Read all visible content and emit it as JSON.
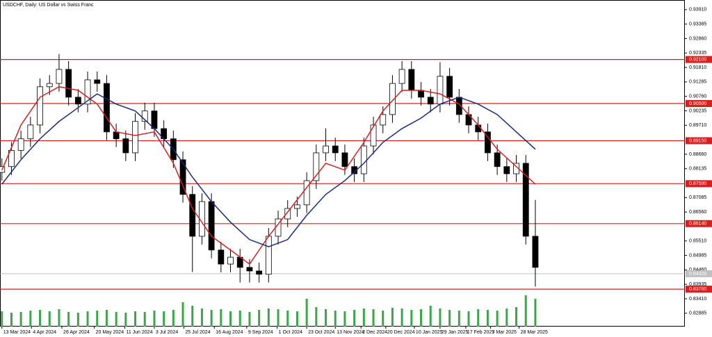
{
  "chart_data": {
    "type": "candlestick",
    "title": "USDCHF, Daily:  US Dollar vs Swiss Franc",
    "x": [
      0,
      1,
      2,
      3,
      4,
      5,
      6,
      7,
      8,
      9,
      10,
      11,
      12,
      13,
      14,
      15,
      16,
      17,
      18,
      19,
      20,
      21,
      22,
      23,
      24,
      25,
      26,
      27,
      28,
      29,
      30,
      31,
      32,
      33,
      34,
      35,
      36,
      37,
      38,
      39,
      40,
      41,
      42,
      43,
      44,
      45,
      46,
      47,
      48,
      49,
      50,
      51,
      52,
      53,
      54,
      55,
      56
    ],
    "open": [
      0.88,
      0.8821,
      0.888,
      0.8922,
      0.8972,
      0.9111,
      0.9123,
      0.9174,
      0.9073,
      0.9048,
      0.9136,
      0.9123,
      0.8947,
      0.8922,
      0.8871,
      0.8985,
      0.9023,
      0.8959,
      0.8922,
      0.8846,
      0.872,
      0.8568,
      0.8694,
      0.8518,
      0.8467,
      0.8492,
      0.8455,
      0.8442,
      0.843,
      0.8568,
      0.8631,
      0.8669,
      0.8682,
      0.877,
      0.8871,
      0.8896,
      0.8871,
      0.8821,
      0.8795,
      0.8896,
      0.8972,
      0.901,
      0.9123,
      0.9174,
      0.9098,
      0.9073,
      0.9048,
      0.9149,
      0.9073,
      0.901,
      0.8972,
      0.8947,
      0.8871,
      0.8821,
      0.8795,
      0.8833,
      0.8568
    ],
    "high": [
      0.8851,
      0.891,
      0.8952,
      0.9002,
      0.9141,
      0.9153,
      0.923,
      0.9204,
      0.9103,
      0.9166,
      0.9166,
      0.9153,
      0.8977,
      0.8952,
      0.9015,
      0.9053,
      0.9053,
      0.8989,
      0.8952,
      0.8876,
      0.875,
      0.8724,
      0.8724,
      0.8548,
      0.8522,
      0.8522,
      0.8485,
      0.8472,
      0.8598,
      0.8661,
      0.8699,
      0.8712,
      0.88,
      0.8901,
      0.896,
      0.8926,
      0.8901,
      0.8851,
      0.8926,
      0.9002,
      0.904,
      0.9153,
      0.9204,
      0.9204,
      0.9128,
      0.9103,
      0.92,
      0.9179,
      0.9103,
      0.904,
      0.9002,
      0.8977,
      0.8901,
      0.8851,
      0.8863,
      0.8863,
      0.87
    ],
    "low": [
      0.877,
      0.8791,
      0.885,
      0.8892,
      0.8942,
      0.9081,
      0.9093,
      0.9043,
      0.9018,
      0.9018,
      0.9093,
      0.8917,
      0.8892,
      0.8841,
      0.8841,
      0.8955,
      0.8929,
      0.8892,
      0.8816,
      0.869,
      0.8438,
      0.8538,
      0.8488,
      0.8437,
      0.8437,
      0.84,
      0.84,
      0.84,
      0.84,
      0.8538,
      0.8601,
      0.8639,
      0.8652,
      0.874,
      0.8841,
      0.8841,
      0.8791,
      0.8765,
      0.8765,
      0.8866,
      0.8942,
      0.898,
      0.9093,
      0.9068,
      0.9043,
      0.9018,
      0.9018,
      0.9043,
      0.898,
      0.8942,
      0.8917,
      0.8841,
      0.8791,
      0.8765,
      0.8765,
      0.8538,
      0.8385
    ],
    "close": [
      0.8821,
      0.888,
      0.8922,
      0.8972,
      0.9111,
      0.9123,
      0.9174,
      0.9073,
      0.9048,
      0.9136,
      0.9123,
      0.8947,
      0.8922,
      0.8871,
      0.8985,
      0.9023,
      0.8959,
      0.8922,
      0.8846,
      0.872,
      0.8568,
      0.8694,
      0.8518,
      0.8467,
      0.8492,
      0.8455,
      0.8442,
      0.843,
      0.8568,
      0.8631,
      0.8669,
      0.8682,
      0.877,
      0.8871,
      0.8896,
      0.8871,
      0.8821,
      0.8795,
      0.8896,
      0.8972,
      0.901,
      0.9123,
      0.9174,
      0.9098,
      0.9073,
      0.9048,
      0.9149,
      0.9073,
      0.901,
      0.8972,
      0.8947,
      0.8871,
      0.8821,
      0.8795,
      0.8833,
      0.8568,
      0.8455
    ],
    "volume": [
      22,
      20,
      21,
      23,
      24,
      22,
      25,
      21,
      20,
      22,
      23,
      24,
      21,
      20,
      22,
      21,
      23,
      22,
      24,
      35,
      30,
      26,
      24,
      25,
      22,
      23,
      21,
      24,
      26,
      25,
      23,
      22,
      40,
      28,
      25,
      23,
      22,
      24,
      26,
      25,
      23,
      27,
      26,
      24,
      25,
      30,
      26,
      24,
      23,
      22,
      25,
      24,
      23,
      26,
      28,
      45,
      40
    ],
    "moving_averages": [
      {
        "color": "#d62020",
        "x": [
          0,
          2,
          4,
          6,
          8,
          10,
          12,
          14,
          16,
          18,
          20,
          22,
          24,
          26,
          28,
          30,
          32,
          34,
          36,
          38,
          40,
          42,
          44,
          46,
          48,
          50,
          52,
          54,
          56
        ],
        "values": [
          0.8808,
          0.8972,
          0.9073,
          0.9111,
          0.9098,
          0.9048,
          0.8947,
          0.8934,
          0.8947,
          0.8833,
          0.8669,
          0.8568,
          0.8518,
          0.8467,
          0.8568,
          0.8656,
          0.8745,
          0.8833,
          0.8808,
          0.8909,
          0.9023,
          0.9098,
          0.9098,
          0.9085,
          0.9048,
          0.8972,
          0.8884,
          0.8821,
          0.8757
        ]
      },
      {
        "color": "#1a2a7a",
        "x": [
          0,
          2,
          4,
          6,
          8,
          10,
          12,
          14,
          16,
          18,
          20,
          22,
          24,
          26,
          28,
          30,
          32,
          34,
          36,
          38,
          40,
          42,
          44,
          46,
          48,
          50,
          52,
          54,
          56
        ],
        "values": [
          0.8757,
          0.8846,
          0.8922,
          0.8985,
          0.9035,
          0.9085,
          0.9048,
          0.9023,
          0.8959,
          0.8884,
          0.8783,
          0.8694,
          0.8619,
          0.8556,
          0.853,
          0.8556,
          0.8644,
          0.872,
          0.877,
          0.8833,
          0.8909,
          0.8959,
          0.8997,
          0.9048,
          0.9073,
          0.9048,
          0.901,
          0.8947,
          0.8884
        ]
      }
    ],
    "levels": [
      {
        "value": 0.921,
        "label": "0.92100"
      },
      {
        "value": 0.905,
        "label": "0.90500"
      },
      {
        "value": 0.8915,
        "label": "0.89150"
      },
      {
        "value": 0.8759,
        "label": "0.87590"
      },
      {
        "value": 0.8614,
        "label": "0.86140"
      },
      {
        "value": 0.8376,
        "label": "0.83760"
      }
    ],
    "current_price": {
      "value": 0.8432,
      "label": "0.84320"
    },
    "xlim": [
      -0.2,
      71.7
    ],
    "ylim": [
      0.824,
      0.9426
    ],
    "xticks": [
      {
        "value": 0,
        "label": "13 Mar 2024"
      },
      {
        "value": 3.1,
        "label": "4 Apr 2024"
      },
      {
        "value": 6.3,
        "label": "26 Apr 2024"
      },
      {
        "value": 9.7,
        "label": "20 May 2024"
      },
      {
        "value": 12.9,
        "label": "11 Jun 2024"
      },
      {
        "value": 16,
        "label": "3 Jul 2024"
      },
      {
        "value": 19.1,
        "label": "25 Jul 2024"
      },
      {
        "value": 22.3,
        "label": "16 Aug 2024"
      },
      {
        "value": 25.7,
        "label": "9 Sep 2024"
      },
      {
        "value": 28.9,
        "label": "1 Oct 2024"
      },
      {
        "value": 32,
        "label": "23 Oct 2024"
      },
      {
        "value": 35,
        "label": "13 Nov 2024"
      },
      {
        "value": 37.7,
        "label": "2 Dec 2024"
      },
      {
        "value": 40.3,
        "label": "20 Dec 2024"
      },
      {
        "value": 43.3,
        "label": "10 Jan 2025"
      },
      {
        "value": 46,
        "label": "29 Jan 2025"
      },
      {
        "value": 48.7,
        "label": "17 Feb 2025"
      },
      {
        "value": 51.3,
        "label": "7 Mar 2025"
      },
      {
        "value": 54.3,
        "label": "28 Mar 2025"
      }
    ],
    "yticks": [
      {
        "value": 0.9391,
        "label": "0.93910"
      },
      {
        "value": 0.93385,
        "label": "0.93385"
      },
      {
        "value": 0.9286,
        "label": "0.92860"
      },
      {
        "value": 0.92335,
        "label": "0.92335"
      },
      {
        "value": 0.9181,
        "label": "0.91810"
      },
      {
        "value": 0.91285,
        "label": "0.91285"
      },
      {
        "value": 0.9076,
        "label": "0.90760"
      },
      {
        "value": 0.90235,
        "label": "0.90235"
      },
      {
        "value": 0.8971,
        "label": "0.89710"
      },
      {
        "value": 0.8866,
        "label": "0.88660"
      },
      {
        "value": 0.88135,
        "label": "0.88135"
      },
      {
        "value": 0.87085,
        "label": "0.87085"
      },
      {
        "value": 0.8656,
        "label": "0.86560"
      },
      {
        "value": 0.8551,
        "label": "0.85510"
      },
      {
        "value": 0.84985,
        "label": "0.84985"
      },
      {
        "value": 0.8446,
        "label": "0.84460"
      },
      {
        "value": 0.83935,
        "label": "0.83935"
      },
      {
        "value": 0.8341,
        "label": "0.83410"
      },
      {
        "value": 0.82885,
        "label": "0.82885"
      }
    ],
    "volume_color": "#3aa64a",
    "level_color": "#d62020",
    "grid": false
  }
}
